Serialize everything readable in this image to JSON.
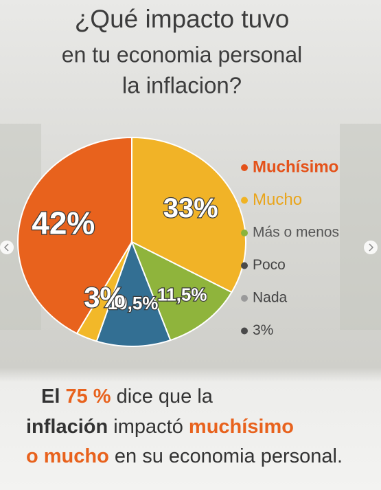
{
  "chart_data": {
    "type": "pie",
    "title_lines": [
      "¿Qué impacto tuvo",
      "en tu economia personal",
      "la inflacion?"
    ],
    "values": [
      42,
      33,
      11.5,
      10.5,
      3
    ],
    "value_labels": [
      "42%",
      "33%",
      "11,5%",
      "10,5%",
      "3%"
    ],
    "colors": [
      "#e8621d",
      "#f1b327",
      "#8fb43c",
      "#336f93",
      "#f2b829"
    ],
    "legend": [
      {
        "label": "Muchísimo",
        "color": "#e4521a",
        "text_color": "#e4521a"
      },
      {
        "label": "Mucho",
        "color": "#f0b323",
        "text_color": "#e9a51c"
      },
      {
        "label": "Más o menos",
        "color": "#8bb33a",
        "text_color": "#555555"
      },
      {
        "label": "Poco",
        "color": "#4a4a4a",
        "text_color": "#444444"
      },
      {
        "label": "Nada",
        "color": "#9a9a9a",
        "text_color": "#444444"
      },
      {
        "label": "3%",
        "color": "#4a4a4a",
        "text_color": "#444444"
      }
    ],
    "conclusion_lines": [
      [
        {
          "text": "El ",
          "color": "#333333",
          "bold": true
        },
        {
          "text": "75 %",
          "color": "#e8621d",
          "bold": true
        },
        {
          "text": " dice que la",
          "color": "#333333",
          "bold": false
        }
      ],
      [
        {
          "text": "inflación",
          "color": "#333333",
          "bold": true
        },
        {
          "text": " impactó ",
          "color": "#333333",
          "bold": false
        },
        {
          "text": "muchísimo",
          "color": "#e8621d",
          "bold": true
        }
      ],
      [
        {
          "text": "o mucho",
          "color": "#e8621d",
          "bold": true
        },
        {
          "text": " en su economia personal.",
          "color": "#333333",
          "bold": false
        }
      ]
    ]
  }
}
